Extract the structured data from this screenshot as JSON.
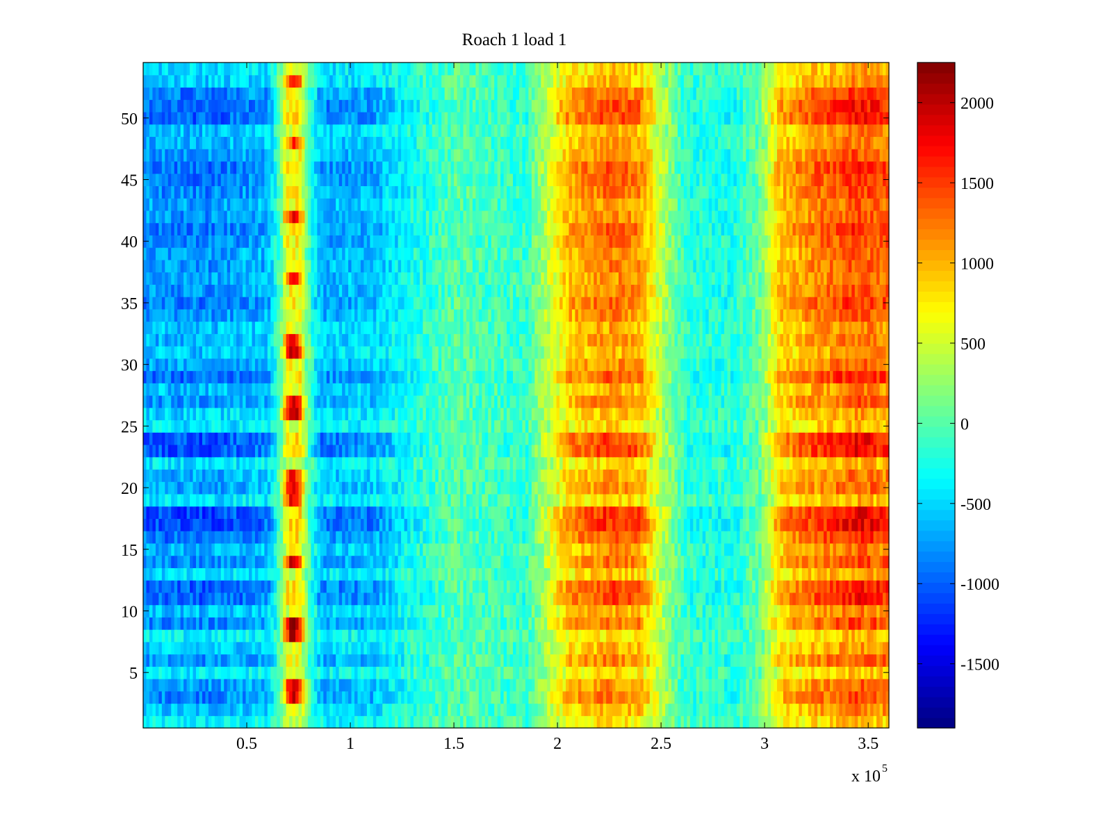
{
  "chart_data": {
    "type": "heatmap",
    "title": "Roach 1 load 1",
    "xlabel": "",
    "ylabel": "",
    "x_exponent_label": "x 10",
    "x_exponent_power": "5",
    "xlim": [
      0,
      360000
    ],
    "ylim": [
      0.5,
      54.5
    ],
    "x_ticks": [
      50000,
      100000,
      150000,
      200000,
      250000,
      300000,
      350000
    ],
    "x_tick_labels": [
      "0.5",
      "1",
      "1.5",
      "2",
      "2.5",
      "3",
      "3.5"
    ],
    "y_ticks": [
      5,
      10,
      15,
      20,
      25,
      30,
      35,
      40,
      45,
      50
    ],
    "y_tick_labels": [
      "5",
      "10",
      "15",
      "20",
      "25",
      "30",
      "35",
      "40",
      "45",
      "50"
    ],
    "rows": 54,
    "colormap": "jet",
    "clim": [
      -1900,
      2250
    ],
    "colorbar_ticks": [
      -1500,
      -1000,
      -500,
      0,
      500,
      1000,
      1500,
      2000
    ],
    "colorbar_tick_labels": [
      "-1500",
      "-1000",
      "-500",
      "0",
      "500",
      "1000",
      "1500",
      "2000"
    ],
    "x_profile": [
      {
        "x": 0,
        "v": -800
      },
      {
        "x": 30000,
        "v": -850
      },
      {
        "x": 60000,
        "v": -700
      },
      {
        "x": 67000,
        "v": 0
      },
      {
        "x": 73000,
        "v": 1200
      },
      {
        "x": 79000,
        "v": 0
      },
      {
        "x": 86000,
        "v": -700
      },
      {
        "x": 110000,
        "v": -650
      },
      {
        "x": 130000,
        "v": -300
      },
      {
        "x": 150000,
        "v": 0
      },
      {
        "x": 170000,
        "v": -100
      },
      {
        "x": 185000,
        "v": -150
      },
      {
        "x": 196000,
        "v": 500
      },
      {
        "x": 205000,
        "v": 1000
      },
      {
        "x": 225000,
        "v": 1300
      },
      {
        "x": 240000,
        "v": 1150
      },
      {
        "x": 250000,
        "v": 450
      },
      {
        "x": 262000,
        "v": -200
      },
      {
        "x": 285000,
        "v": -250
      },
      {
        "x": 298000,
        "v": 100
      },
      {
        "x": 307000,
        "v": 950
      },
      {
        "x": 325000,
        "v": 1250
      },
      {
        "x": 345000,
        "v": 1500
      },
      {
        "x": 360000,
        "v": 1350
      }
    ],
    "row_amplitude": [
      0.2,
      0.6,
      1.0,
      0.8,
      0.2,
      0.9,
      0.5,
      0.2,
      1.0,
      0.6,
      1.3,
      1.3,
      0.4,
      1.0,
      0.7,
      1.2,
      1.5,
      1.5,
      0.3,
      0.8,
      0.7,
      0.3,
      1.4,
      1.4,
      0.3,
      0.4,
      0.9,
      0.6,
      1.2,
      0.8,
      0.5,
      0.7,
      0.6,
      0.9,
      1.1,
      0.9,
      0.8,
      0.9,
      0.8,
      1.0,
      1.1,
      0.9,
      0.8,
      1.0,
      1.1,
      1.2,
      0.9,
      0.7,
      0.6,
      1.3,
      1.3,
      1.1,
      0.5,
      0.4
    ],
    "vertical_stripe_center": 72500,
    "vertical_stripe_peaks": [
      {
        "y": 3,
        "v": 1900
      },
      {
        "y": 4,
        "v": 1900
      },
      {
        "y": 8,
        "v": 2100
      },
      {
        "y": 9,
        "v": 2100
      },
      {
        "y": 14,
        "v": 1900
      },
      {
        "y": 19,
        "v": 1800
      },
      {
        "y": 20,
        "v": 1800
      },
      {
        "y": 21,
        "v": 1700
      },
      {
        "y": 26,
        "v": 2100
      },
      {
        "y": 27,
        "v": 1900
      },
      {
        "y": 31,
        "v": 2000
      },
      {
        "y": 32,
        "v": 1700
      },
      {
        "y": 37,
        "v": 1600
      },
      {
        "y": 42,
        "v": 1700
      },
      {
        "y": 48,
        "v": 1500
      },
      {
        "y": 53,
        "v": 1700
      }
    ]
  }
}
